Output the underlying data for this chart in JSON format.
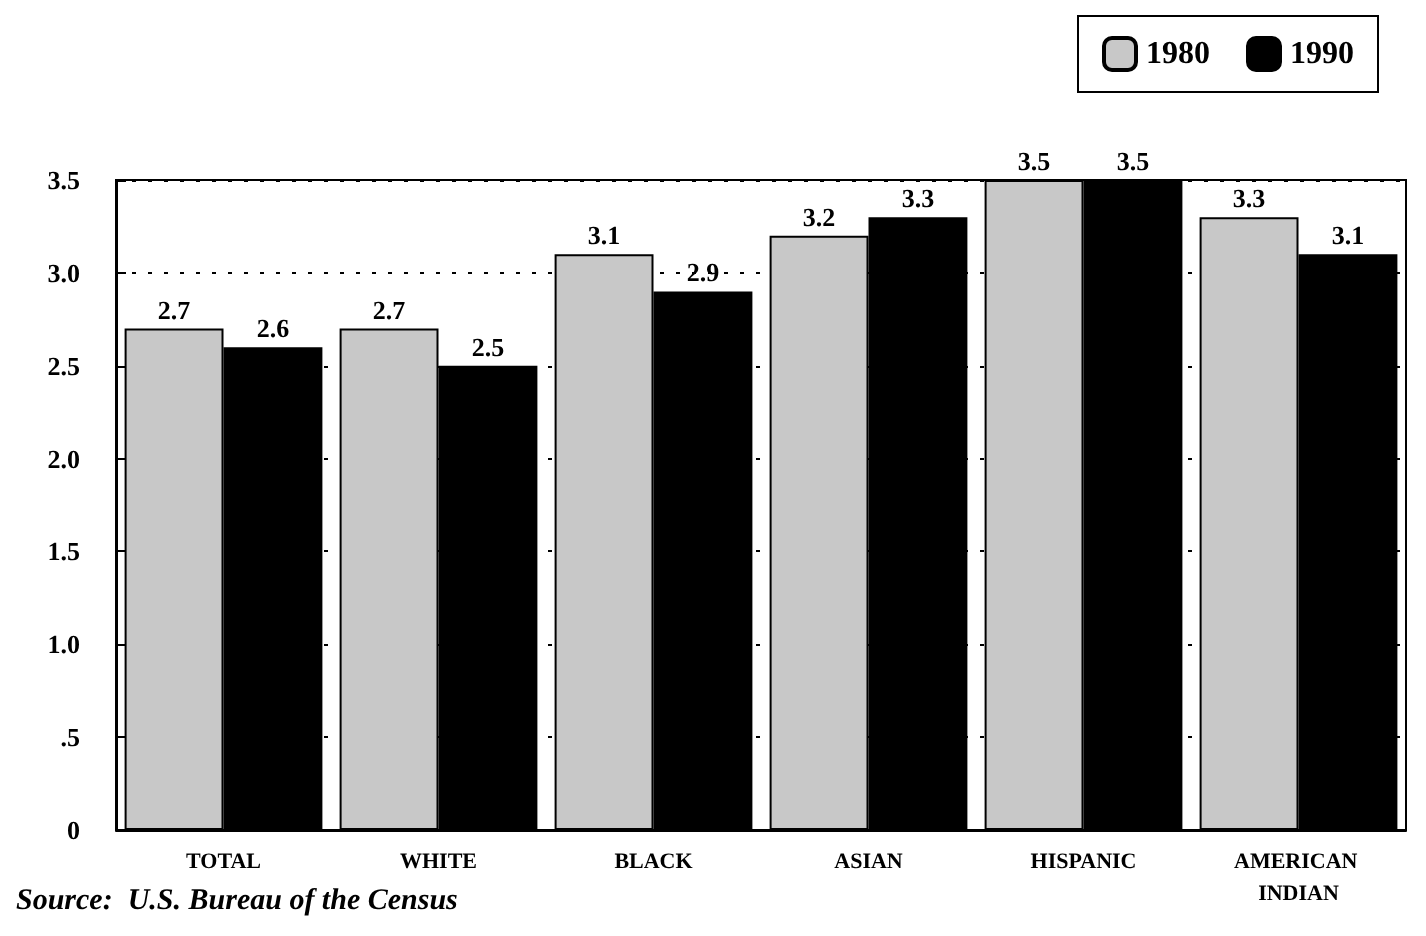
{
  "chart_data": {
    "type": "bar",
    "categories": [
      "TOTAL",
      "WHITE",
      "BLACK",
      "ASIAN",
      "HISPANIC",
      "AMERICAN INDIAN"
    ],
    "series": [
      {
        "name": "1980",
        "color": "#c8c8c8",
        "values": [
          2.7,
          2.7,
          3.1,
          3.2,
          3.5,
          3.3
        ]
      },
      {
        "name": "1990",
        "color": "#000000",
        "values": [
          2.6,
          2.5,
          2.9,
          3.3,
          3.5,
          3.1
        ]
      }
    ],
    "ylim": [
      0,
      3.5
    ],
    "yticks": [
      0,
      {
        "value": 0.5,
        "label": ".5"
      },
      {
        "value": 1,
        "label": "1.0"
      },
      1.5,
      {
        "value": 2,
        "label": "2.0"
      },
      2.5,
      {
        "value": 3,
        "label": "3.0"
      },
      3.5
    ],
    "grid": "y",
    "legend": "top right",
    "data_labels": true,
    "annotations": [
      "Source:  U.S. Bureau of the Census"
    ]
  }
}
